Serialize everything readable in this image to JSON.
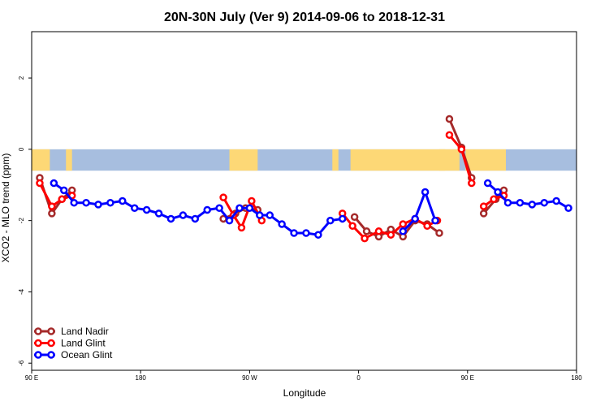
{
  "chart_data": {
    "type": "line",
    "title": "20N-30N July (Ver 9)   2014-09-06 to 2018-12-31",
    "xlabel": "Longitude",
    "ylabel": "XCO2 - MLO trend (ppm)",
    "xlim": [
      -90,
      180
    ],
    "ylim": [
      -6.2,
      3.3
    ],
    "x_ticks": [
      {
        "value": -90,
        "label": "90 E"
      },
      {
        "value": -36,
        "label": "180"
      },
      {
        "value": 18,
        "label": "90 W"
      },
      {
        "value": 72,
        "label": "0"
      },
      {
        "value": 126,
        "label": "90 E"
      },
      {
        "value": 180,
        "label": "180"
      }
    ],
    "y_ticks": [
      2,
      0,
      -2,
      -4,
      -6
    ],
    "map_band": {
      "ymin": -0.6,
      "ymax": 0.0,
      "ocean_color": "#a7bedf",
      "land_color": "#fdd876"
    },
    "legend_position": "bottom-left",
    "series": [
      {
        "name": "Land Nadir",
        "color": "#a52a2a",
        "segments": [
          {
            "x": [
              -86,
              -80,
              -75,
              -70
            ],
            "y": [
              -0.8,
              -1.8,
              -1.4,
              -1.15
            ]
          },
          {
            "x": [
              5,
              11,
              16,
              22
            ],
            "y": [
              -1.95,
              -1.8,
              -1.65,
              -1.7
            ]
          },
          {
            "x": [
              70,
              76,
              82,
              88,
              94,
              100,
              106,
              112
            ],
            "y": [
              -1.9,
              -2.3,
              -2.45,
              -2.25,
              -2.45,
              -2.0,
              -2.1,
              -2.35
            ]
          },
          {
            "x": [
              117,
              123,
              128
            ],
            "y": [
              0.85,
              0.05,
              -0.8
            ]
          },
          {
            "x": [
              134,
              140,
              144
            ],
            "y": [
              -1.8,
              -1.4,
              -1.15
            ]
          }
        ]
      },
      {
        "name": "Land Glint",
        "color": "#ff0000",
        "segments": [
          {
            "x": [
              -86,
              -80,
              -75,
              -70
            ],
            "y": [
              -0.95,
              -1.6,
              -1.4,
              -1.3
            ]
          },
          {
            "x": [
              5,
              10,
              14,
              19,
              24
            ],
            "y": [
              -1.35,
              -1.85,
              -2.2,
              -1.45,
              -2.0
            ]
          },
          {
            "x": [
              64,
              69,
              75,
              82,
              88,
              94,
              100,
              106,
              111
            ],
            "y": [
              -1.8,
              -2.15,
              -2.5,
              -2.3,
              -2.4,
              -2.1,
              -1.95,
              -2.15,
              -2.0
            ]
          },
          {
            "x": [
              117,
              123,
              128
            ],
            "y": [
              0.4,
              0.0,
              -0.95
            ]
          },
          {
            "x": [
              134,
              139,
              144
            ],
            "y": [
              -1.6,
              -1.4,
              -1.3
            ]
          }
        ]
      },
      {
        "name": "Ocean Glint",
        "color": "#0000ff",
        "segments": [
          {
            "x": [
              -79,
              -74,
              -69,
              -63,
              -57,
              -51,
              -45,
              -39,
              -33,
              -27,
              -21,
              -15,
              -9,
              -3,
              3,
              8,
              13,
              18,
              23,
              28,
              34,
              40,
              46,
              52,
              58,
              64
            ],
            "y": [
              -0.95,
              -1.15,
              -1.5,
              -1.5,
              -1.55,
              -1.5,
              -1.45,
              -1.65,
              -1.7,
              -1.8,
              -1.95,
              -1.85,
              -1.95,
              -1.7,
              -1.65,
              -2.0,
              -1.65,
              -1.65,
              -1.85,
              -1.85,
              -2.1,
              -2.35,
              -2.35,
              -2.4,
              -2.0,
              -1.95
            ]
          },
          {
            "x": [
              94,
              100,
              105,
              110
            ],
            "y": [
              -2.3,
              -1.95,
              -1.2,
              -2.0
            ]
          },
          {
            "x": [
              136,
              141,
              146,
              152,
              158,
              164,
              170,
              176
            ],
            "y": [
              -0.95,
              -1.2,
              -1.5,
              -1.5,
              -1.55,
              -1.5,
              -1.45,
              -1.65
            ]
          }
        ]
      }
    ]
  }
}
